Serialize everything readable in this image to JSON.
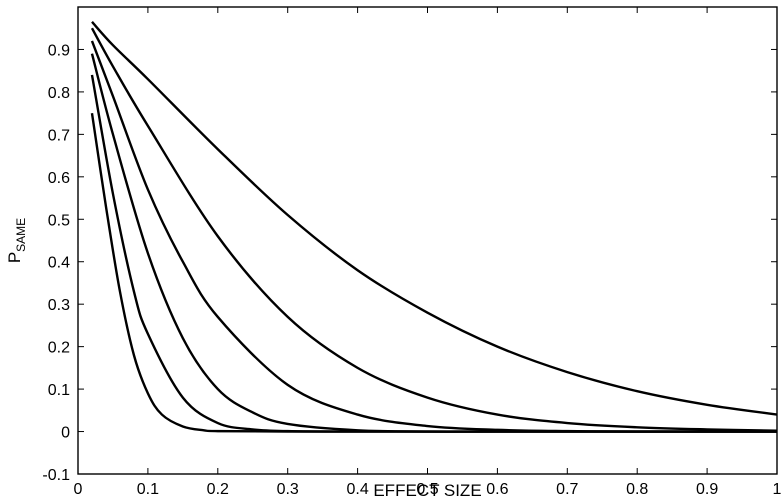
{
  "chart_data": {
    "type": "line",
    "title": "",
    "xlabel": "EFFECT SIZE",
    "ylabel": "P",
    "ylabel_subscript": "SAME",
    "xlim": [
      0,
      1
    ],
    "ylim": [
      -0.1,
      1.0
    ],
    "xticks": [
      "0",
      "0.1",
      "0.2",
      "0.3",
      "0.4",
      "0.5",
      "0.6",
      "0.7",
      "0.8",
      "0.9",
      "1"
    ],
    "yticks": [
      "-0.1",
      "0",
      "0.1",
      "0.2",
      "0.3",
      "0.4",
      "0.5",
      "0.6",
      "0.7",
      "0.8",
      "0.9"
    ],
    "grid": false,
    "legend": "none",
    "line_color": "#000000",
    "series": [
      {
        "x": [
          0.02,
          0.05,
          0.1,
          0.2,
          0.3,
          0.4,
          0.5,
          0.6,
          0.7,
          0.8,
          0.9,
          1.0
        ],
        "y": [
          0.965,
          0.91,
          0.83,
          0.665,
          0.51,
          0.38,
          0.28,
          0.2,
          0.14,
          0.095,
          0.063,
          0.04
        ]
      },
      {
        "x": [
          0.02,
          0.05,
          0.1,
          0.2,
          0.3,
          0.4,
          0.5,
          0.6,
          0.7,
          0.8,
          0.9,
          1.0
        ],
        "y": [
          0.95,
          0.86,
          0.72,
          0.46,
          0.27,
          0.15,
          0.08,
          0.04,
          0.02,
          0.01,
          0.005,
          0.002
        ]
      },
      {
        "x": [
          0.02,
          0.05,
          0.1,
          0.15,
          0.2,
          0.3,
          0.4,
          0.5,
          0.6,
          0.7,
          0.8,
          1.0
        ],
        "y": [
          0.92,
          0.79,
          0.57,
          0.4,
          0.27,
          0.11,
          0.04,
          0.013,
          0.004,
          0.001,
          0.0,
          0.0
        ]
      },
      {
        "x": [
          0.02,
          0.05,
          0.1,
          0.15,
          0.2,
          0.25,
          0.3,
          0.4,
          0.5,
          0.6,
          0.8,
          1.0
        ],
        "y": [
          0.89,
          0.7,
          0.42,
          0.22,
          0.1,
          0.045,
          0.018,
          0.003,
          0.0,
          0.0,
          0.0,
          0.0
        ]
      },
      {
        "x": [
          0.02,
          0.05,
          0.08,
          0.1,
          0.15,
          0.2,
          0.25,
          0.3,
          0.4,
          0.6,
          0.8,
          1.0
        ],
        "y": [
          0.84,
          0.56,
          0.33,
          0.23,
          0.08,
          0.02,
          0.005,
          0.001,
          0.0,
          0.0,
          0.0,
          0.0
        ]
      },
      {
        "x": [
          0.02,
          0.04,
          0.06,
          0.08,
          0.1,
          0.12,
          0.15,
          0.18,
          0.2,
          0.3,
          0.5,
          1.0
        ],
        "y": [
          0.75,
          0.53,
          0.33,
          0.18,
          0.09,
          0.04,
          0.012,
          0.003,
          0.001,
          0.0,
          0.0,
          0.0
        ]
      }
    ]
  }
}
